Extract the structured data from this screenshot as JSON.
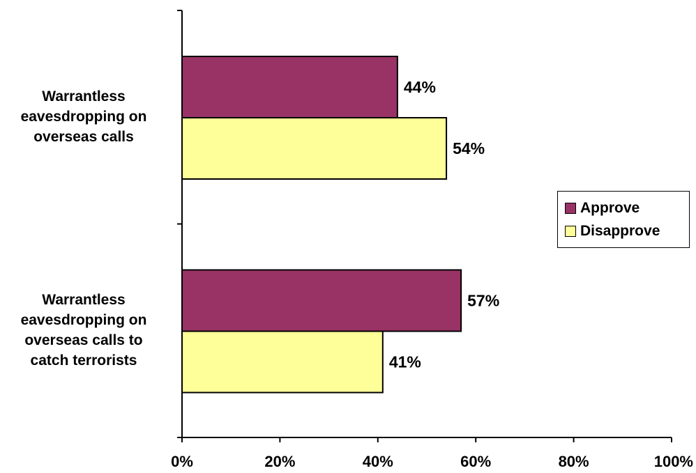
{
  "chart_data": {
    "type": "bar",
    "orientation": "horizontal",
    "categories": [
      "Warrantless\neavesdropping on\noverseas calls",
      "Warrantless\neavesdropping on\noverseas calls to\ncatch terrorists"
    ],
    "series": [
      {
        "name": "Approve",
        "color": "#993366",
        "values": [
          44,
          57
        ],
        "labels": [
          "44%",
          "57%"
        ]
      },
      {
        "name": "Disapprove",
        "color": "#FFFF99",
        "values": [
          54,
          41
        ],
        "labels": [
          "54%",
          "41%"
        ]
      }
    ],
    "xlim": [
      0,
      100
    ],
    "xticks": [
      0,
      20,
      40,
      60,
      80,
      100
    ],
    "xtick_labels": [
      "0%",
      "20%",
      "40%",
      "60%",
      "80%",
      "100%"
    ],
    "title": "",
    "xlabel": "",
    "ylabel": "",
    "grid": false,
    "legend_position": "right"
  }
}
